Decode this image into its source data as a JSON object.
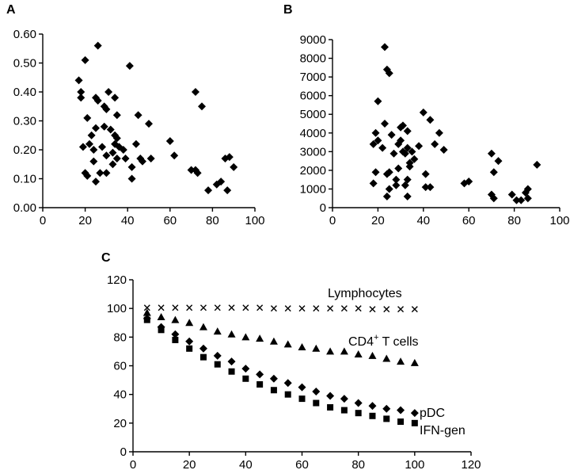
{
  "chart_data": [
    {
      "type": "scatter",
      "label": "A",
      "xlim": [
        0,
        100
      ],
      "ylim": [
        0,
        0.6
      ],
      "xticks": [
        "0",
        "20",
        "40",
        "60",
        "80",
        "100"
      ],
      "yticks": [
        "0.00",
        "0.10",
        "0.20",
        "0.30",
        "0.40",
        "0.50",
        "0.60"
      ],
      "marker": "diamond",
      "points": [
        [
          17,
          0.44
        ],
        [
          18,
          0.4
        ],
        [
          18,
          0.38
        ],
        [
          19,
          0.21
        ],
        [
          20,
          0.12
        ],
        [
          20,
          0.51
        ],
        [
          21,
          0.11
        ],
        [
          21,
          0.31
        ],
        [
          22,
          0.22
        ],
        [
          23,
          0.25
        ],
        [
          24,
          0.2
        ],
        [
          24,
          0.16
        ],
        [
          25,
          0.09
        ],
        [
          25,
          0.38
        ],
        [
          25,
          0.275
        ],
        [
          26,
          0.56
        ],
        [
          26,
          0.37
        ],
        [
          27,
          0.12
        ],
        [
          28,
          0.21
        ],
        [
          29,
          0.28
        ],
        [
          29,
          0.35
        ],
        [
          30,
          0.34
        ],
        [
          30,
          0.18
        ],
        [
          30,
          0.12
        ],
        [
          31,
          0.4
        ],
        [
          32,
          0.27
        ],
        [
          33,
          0.15
        ],
        [
          33,
          0.19
        ],
        [
          34,
          0.22
        ],
        [
          34,
          0.25
        ],
        [
          34,
          0.38
        ],
        [
          35,
          0.32
        ],
        [
          35,
          0.24
        ],
        [
          35,
          0.17
        ],
        [
          36,
          0.21
        ],
        [
          38,
          0.2
        ],
        [
          39,
          0.17
        ],
        [
          41,
          0.49
        ],
        [
          42,
          0.1
        ],
        [
          42,
          0.14
        ],
        [
          44,
          0.22
        ],
        [
          45,
          0.32
        ],
        [
          46,
          0.17
        ],
        [
          47,
          0.16
        ],
        [
          50,
          0.29
        ],
        [
          51,
          0.17
        ],
        [
          60,
          0.23
        ],
        [
          62,
          0.18
        ],
        [
          70,
          0.13
        ],
        [
          72,
          0.4
        ],
        [
          72,
          0.13
        ],
        [
          73,
          0.12
        ],
        [
          75,
          0.35
        ],
        [
          78,
          0.06
        ],
        [
          82,
          0.08
        ],
        [
          84,
          0.09
        ],
        [
          86,
          0.17
        ],
        [
          87,
          0.06
        ],
        [
          88,
          0.175
        ],
        [
          90,
          0.14
        ]
      ]
    },
    {
      "type": "scatter",
      "label": "B",
      "xlim": [
        0,
        100
      ],
      "ylim": [
        0,
        9000
      ],
      "xticks": [
        "0",
        "20",
        "40",
        "60",
        "80",
        "100"
      ],
      "yticks": [
        "0",
        "1000",
        "2000",
        "3000",
        "4000",
        "5000",
        "6000",
        "7000",
        "8000",
        "9000"
      ],
      "marker": "diamond",
      "points": [
        [
          18,
          3400
        ],
        [
          18,
          1300
        ],
        [
          19,
          4000
        ],
        [
          19,
          1900
        ],
        [
          20,
          3600
        ],
        [
          20,
          5700
        ],
        [
          22,
          3200
        ],
        [
          23,
          8600
        ],
        [
          23,
          4500
        ],
        [
          24,
          7400
        ],
        [
          24,
          1800
        ],
        [
          24,
          600
        ],
        [
          25,
          7200
        ],
        [
          25,
          1900
        ],
        [
          25,
          1000
        ],
        [
          26,
          3900
        ],
        [
          27,
          2900
        ],
        [
          28,
          1500
        ],
        [
          28,
          1200
        ],
        [
          29,
          3400
        ],
        [
          29,
          2100
        ],
        [
          30,
          4300
        ],
        [
          30,
          3600
        ],
        [
          31,
          4400
        ],
        [
          31,
          3000
        ],
        [
          32,
          2900
        ],
        [
          32,
          1200
        ],
        [
          33,
          4100
        ],
        [
          33,
          3200
        ],
        [
          33,
          1500
        ],
        [
          33,
          600
        ],
        [
          34,
          2400
        ],
        [
          34,
          2200
        ],
        [
          35,
          3000
        ],
        [
          36,
          2600
        ],
        [
          38,
          3300
        ],
        [
          40,
          5100
        ],
        [
          41,
          1800
        ],
        [
          41,
          1100
        ],
        [
          43,
          4700
        ],
        [
          43,
          1100
        ],
        [
          45,
          3400
        ],
        [
          47,
          4000
        ],
        [
          49,
          3100
        ],
        [
          58,
          1300
        ],
        [
          60,
          1400
        ],
        [
          70,
          700
        ],
        [
          70,
          2900
        ],
        [
          71,
          500
        ],
        [
          71,
          1900
        ],
        [
          73,
          2500
        ],
        [
          79,
          700
        ],
        [
          81,
          400
        ],
        [
          83,
          400
        ],
        [
          85,
          800
        ],
        [
          86,
          1000
        ],
        [
          86,
          500
        ],
        [
          90,
          2300
        ]
      ]
    },
    {
      "type": "scatter",
      "label": "C",
      "xlim": [
        0,
        120
      ],
      "ylim": [
        0,
        120
      ],
      "xticks": [
        "0",
        "20",
        "40",
        "60",
        "80",
        "100",
        "120"
      ],
      "yticks": [
        "0",
        "20",
        "40",
        "60",
        "80",
        "100",
        "120"
      ],
      "series": [
        {
          "name": "Lymphocytes",
          "marker": "x",
          "x": [
            5,
            10,
            15,
            20,
            25,
            30,
            35,
            40,
            45,
            50,
            55,
            60,
            65,
            70,
            75,
            80,
            85,
            90,
            95,
            100
          ],
          "values": [
            100.5,
            100.5,
            100.5,
            100.5,
            100.5,
            100.5,
            100.5,
            100.5,
            100.5,
            100,
            100,
            100,
            100,
            100,
            100,
            100,
            99.5,
            99.5,
            99.5,
            99.5
          ]
        },
        {
          "name": "CD4",
          "marker": "triangle",
          "x": [
            5,
            10,
            15,
            20,
            25,
            30,
            35,
            40,
            45,
            50,
            55,
            60,
            65,
            70,
            75,
            80,
            85,
            90,
            95,
            100
          ],
          "values": [
            97,
            94,
            92,
            90,
            87,
            84,
            82,
            80,
            79,
            77,
            75,
            73,
            72,
            70,
            70,
            68,
            67,
            65,
            63,
            62
          ]
        },
        {
          "name": "pDC",
          "marker": "diamond",
          "x": [
            5,
            10,
            15,
            20,
            25,
            30,
            35,
            40,
            45,
            50,
            55,
            60,
            65,
            70,
            75,
            80,
            85,
            90,
            95,
            100
          ],
          "values": [
            93,
            87,
            82,
            77,
            72,
            67,
            63,
            58,
            54,
            51,
            48,
            45,
            42,
            39,
            37,
            34,
            32,
            30,
            29,
            27
          ]
        },
        {
          "name": "IFN-gen",
          "marker": "square",
          "x": [
            5,
            10,
            15,
            20,
            25,
            30,
            35,
            40,
            45,
            50,
            55,
            60,
            65,
            70,
            75,
            80,
            85,
            90,
            95,
            100
          ],
          "values": [
            92,
            85,
            78,
            72,
            66,
            61,
            56,
            51,
            47,
            43,
            40,
            37,
            34,
            31,
            29,
            27,
            25,
            23,
            21,
            20
          ]
        }
      ],
      "series_labels": {
        "lymphocytes": "Lymphocytes",
        "cd4_prefix": "CD4",
        "cd4_sup": "+",
        "cd4_suffix": " T cells",
        "pdc": "pDC",
        "ifn": "IFN-gen"
      }
    }
  ]
}
